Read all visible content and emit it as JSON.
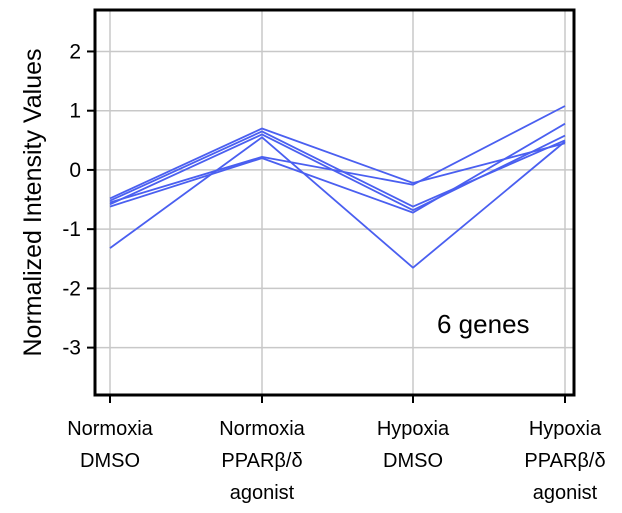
{
  "chart_data": {
    "type": "line",
    "title": "",
    "xlabel": "",
    "ylabel": "Normalized Intensity Values",
    "ylim": [
      -3.8,
      2.7
    ],
    "yticks": [
      "2",
      "1",
      "0",
      "-1",
      "-2",
      "-3"
    ],
    "ytick_values": [
      2,
      1,
      0,
      -1,
      -2,
      -3
    ],
    "categories": [
      [
        "Normoxia",
        "DMSO"
      ],
      [
        "Normoxia",
        "PPARβ/δ",
        "agonist"
      ],
      [
        "Hypoxia",
        "DMSO"
      ],
      [
        "Hypoxia",
        "PPARβ/δ",
        "agonist"
      ]
    ],
    "grid": true,
    "annotation": "6 genes",
    "line_color": "#4a5ff0",
    "series": [
      {
        "values": [
          -0.48,
          0.7,
          -0.22,
          0.45
        ]
      },
      {
        "values": [
          -0.52,
          0.65,
          -0.62,
          0.5
        ]
      },
      {
        "values": [
          -0.58,
          0.6,
          -0.68,
          0.58
        ]
      },
      {
        "values": [
          -0.62,
          0.2,
          -0.72,
          0.78
        ]
      },
      {
        "values": [
          -0.55,
          0.22,
          -0.25,
          1.08
        ]
      },
      {
        "values": [
          -1.32,
          0.55,
          -1.65,
          0.48
        ]
      }
    ]
  }
}
